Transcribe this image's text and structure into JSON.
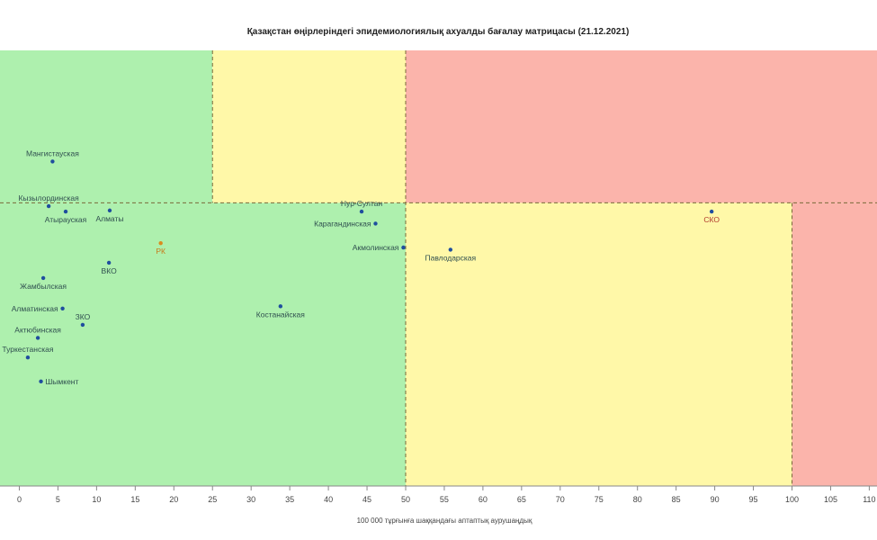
{
  "chart_data": {
    "type": "scatter",
    "title": "Қазақстан өңірлеріндегі эпидемиологиялық ахуалды бағалау матрицасы  (21.12.2021)",
    "xlabel": "100 000 тұрғынға шаққандағы аптаптық аурушаңдық",
    "ylabel": "",
    "xlim": [
      -2.5,
      111
    ],
    "x_ticks": [
      0,
      5,
      10,
      15,
      20,
      25,
      30,
      35,
      40,
      45,
      50,
      55,
      60,
      65,
      70,
      75,
      80,
      85,
      90,
      95,
      100,
      105,
      110
    ],
    "y_axis_visible": false,
    "ylim": [
      -1.6,
      2.4
    ],
    "grid": false,
    "zones": [
      {
        "x0": -2.5,
        "x1": 25,
        "y0": 1.0,
        "y1": 2.4,
        "color": "#aef0ae"
      },
      {
        "x0": 25,
        "x1": 50,
        "y0": 1.0,
        "y1": 2.4,
        "color": "#fff8a8"
      },
      {
        "x0": 50,
        "x1": 111,
        "y0": 1.0,
        "y1": 2.4,
        "color": "#fbb4ab"
      },
      {
        "x0": -2.5,
        "x1": 50,
        "y0": -1.6,
        "y1": 1.0,
        "color": "#aef0ae"
      },
      {
        "x0": 50,
        "x1": 100,
        "y0": -1.6,
        "y1": 1.0,
        "color": "#fff8a8"
      },
      {
        "x0": 100,
        "x1": 111,
        "y0": -1.6,
        "y1": 1.0,
        "color": "#fbb4ab"
      }
    ],
    "divider_lines": [
      {
        "orientation": "h",
        "value": 1.0
      },
      {
        "orientation": "v",
        "value": 25,
        "from": 1.0,
        "to": 2.4
      },
      {
        "orientation": "v",
        "value": 50,
        "from": -1.6,
        "to": 2.4
      },
      {
        "orientation": "v",
        "value": 100,
        "from": -1.6,
        "to": 1.0
      }
    ],
    "points": [
      {
        "name": "Мангистауская",
        "x": 4.3,
        "y": 1.38,
        "label_pos": "above",
        "color": "#1f4e9e",
        "label_color": "normal"
      },
      {
        "name": "Кызылординская",
        "x": 3.8,
        "y": 0.97,
        "label_pos": "above",
        "color": "#1f4e9e",
        "label_color": "normal"
      },
      {
        "name": "Атырауская",
        "x": 6.0,
        "y": 0.92,
        "label_pos": "below",
        "color": "#1f4e9e",
        "label_color": "normal"
      },
      {
        "name": "Алматы",
        "x": 11.7,
        "y": 0.93,
        "label_pos": "below",
        "color": "#1f4e9e",
        "label_color": "normal"
      },
      {
        "name": "РК",
        "x": 18.3,
        "y": 0.63,
        "label_pos": "below",
        "color": "#d98c1f",
        "label_color": "orange"
      },
      {
        "name": "ВКО",
        "x": 11.6,
        "y": 0.45,
        "label_pos": "below",
        "color": "#1f4e9e",
        "label_color": "normal"
      },
      {
        "name": "Жамбылская",
        "x": 3.1,
        "y": 0.31,
        "label_pos": "below",
        "color": "#1f4e9e",
        "label_color": "normal"
      },
      {
        "name": "Алматинская",
        "x": 5.6,
        "y": 0.03,
        "label_pos": "left",
        "color": "#1f4e9e",
        "label_color": "normal"
      },
      {
        "name": "ЗКО",
        "x": 8.2,
        "y": -0.12,
        "label_pos": "above",
        "color": "#1f4e9e",
        "label_color": "normal"
      },
      {
        "name": "Актюбинская",
        "x": 2.4,
        "y": -0.24,
        "label_pos": "above",
        "color": "#1f4e9e",
        "label_color": "normal"
      },
      {
        "name": "Туркестанская",
        "x": 1.1,
        "y": -0.42,
        "label_pos": "above",
        "color": "#1f4e9e",
        "label_color": "normal"
      },
      {
        "name": "Шымкент",
        "x": 2.8,
        "y": -0.64,
        "label_pos": "right",
        "color": "#1f4e9e",
        "label_color": "normal"
      },
      {
        "name": "Костанайская",
        "x": 33.8,
        "y": 0.05,
        "label_pos": "below",
        "color": "#1f4e9e",
        "label_color": "normal"
      },
      {
        "name": "Нур-Султан",
        "x": 44.3,
        "y": 0.92,
        "label_pos": "above",
        "color": "#1f4e9e",
        "label_color": "normal"
      },
      {
        "name": "Карагандинская",
        "x": 46.1,
        "y": 0.81,
        "label_pos": "left",
        "color": "#1f4e9e",
        "label_color": "normal"
      },
      {
        "name": "Акмолинская",
        "x": 49.7,
        "y": 0.59,
        "label_pos": "left",
        "color": "#1f4e9e",
        "label_color": "normal"
      },
      {
        "name": "Павлодарская",
        "x": 55.8,
        "y": 0.57,
        "label_pos": "below",
        "color": "#1f4e9e",
        "label_color": "normal"
      },
      {
        "name": "СКО",
        "x": 89.6,
        "y": 0.92,
        "label_pos": "below",
        "color": "#1f4e9e",
        "label_color": "red"
      }
    ]
  }
}
